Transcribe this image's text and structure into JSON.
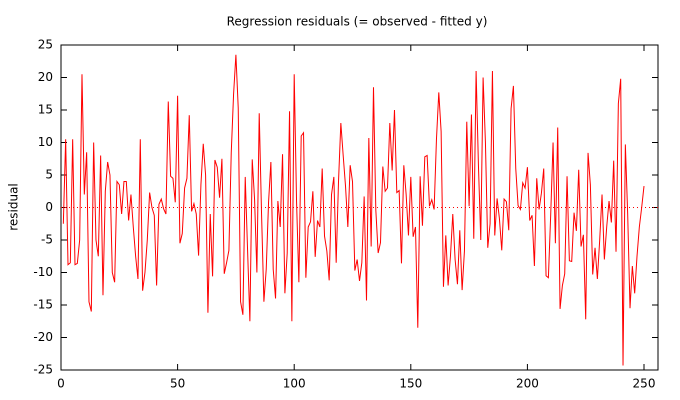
{
  "chart_data": {
    "type": "line",
    "title": "Regression residuals (= observed - fitted y)",
    "y_label": "residual",
    "series": [
      {
        "name": "residual",
        "color": "#ff0000",
        "values": [
          -2.5,
          10.5,
          -8.8,
          -8.5,
          10.5,
          -8.8,
          -8.6,
          -5,
          20.5,
          2,
          8.5,
          -14.5,
          -16,
          10,
          -5,
          -7.5,
          8,
          -13.5,
          2.5,
          7,
          5,
          -10,
          -11.5,
          4,
          3.5,
          -1,
          4,
          4,
          -2,
          2,
          -3,
          -7.5,
          -11,
          10.5,
          -12.8,
          -10,
          -5,
          2.3,
          0,
          -1.2,
          -12,
          0.5,
          1.3,
          -0.2,
          -1,
          16.3,
          4.8,
          4.5,
          0.8,
          17.2,
          -5.5,
          -4,
          3,
          4.5,
          14.2,
          -0.6,
          0.6,
          -1,
          -7.4,
          3.5,
          9.8,
          5,
          -16.2,
          -1,
          -10.6,
          7.3,
          6.2,
          1.5,
          7.5,
          -10.2,
          -8.5,
          -6.6,
          8.4,
          17.4,
          23.5,
          15.3,
          -14.5,
          -16.5,
          4.7,
          -6.5,
          -17.5,
          7.4,
          1.3,
          -10,
          14.5,
          -1,
          -14.5,
          -9.5,
          0.8,
          7,
          -9.5,
          -14,
          1,
          -3,
          8.2,
          -13.2,
          -7,
          14.8,
          -17.5,
          20.5,
          1,
          -11.5,
          11,
          11.5,
          -10.8,
          -3,
          -2.2,
          2.5,
          -7.6,
          -2,
          -3,
          6,
          -4.4,
          -6.7,
          -11.2,
          2,
          4.7,
          -8.5,
          4,
          13,
          8,
          3.3,
          -3,
          6.5,
          4,
          -9.7,
          -8,
          -11.3,
          -8.5,
          1.7,
          -14.3,
          10.7,
          -6,
          18.5,
          -0.4,
          -7,
          -5.4,
          6.3,
          2.5,
          3,
          13,
          5.7,
          15,
          2.3,
          2.6,
          -8.6,
          6.5,
          2,
          -4.3,
          4.7,
          -4.5,
          -3,
          -18.5,
          4.8,
          -2.8,
          7.8,
          8,
          0.2,
          1.2,
          -0.3,
          10.5,
          17.7,
          11.7,
          -12.2,
          -4.3,
          -12,
          -7.5,
          -1,
          -8,
          -11.8,
          -3.5,
          -12.7,
          -6.7,
          13.2,
          0.2,
          14.3,
          -4.8,
          21,
          6.5,
          -5,
          20,
          10,
          -6.2,
          -2.5,
          21,
          -4.3,
          1.4,
          -1.7,
          -6.6,
          1.3,
          0.9,
          -3.5,
          15.2,
          18.7,
          6,
          0.3,
          -0.3,
          3.8,
          3,
          6.2,
          -2,
          -1.2,
          -9,
          4.5,
          -0.3,
          2.2,
          6,
          -10.5,
          -10.8,
          -1,
          10,
          -5.5,
          12.3,
          -15.6,
          -12,
          -10.2,
          4.8,
          -8.2,
          -8.3,
          -0.8,
          -3.6,
          5.8,
          -6,
          -4.2,
          -17.2,
          8.4,
          3.5,
          -10.3,
          -6.2,
          -11,
          -5,
          2,
          -8,
          -3,
          1,
          -2.3,
          7.2,
          -6.8,
          16,
          19.8,
          -24.3,
          9.7,
          -1,
          -15.5,
          -9,
          -13.2,
          -7.5,
          -3,
          0,
          3.3
        ]
      }
    ],
    "xlim": [
      0,
      256
    ],
    "xticks": [
      0,
      50,
      100,
      150,
      200,
      250
    ],
    "ylim": [
      -25,
      25
    ],
    "yticks": [
      -25,
      -20,
      -15,
      -10,
      -5,
      0,
      5,
      10,
      15,
      20,
      25
    ],
    "hline": 0
  }
}
